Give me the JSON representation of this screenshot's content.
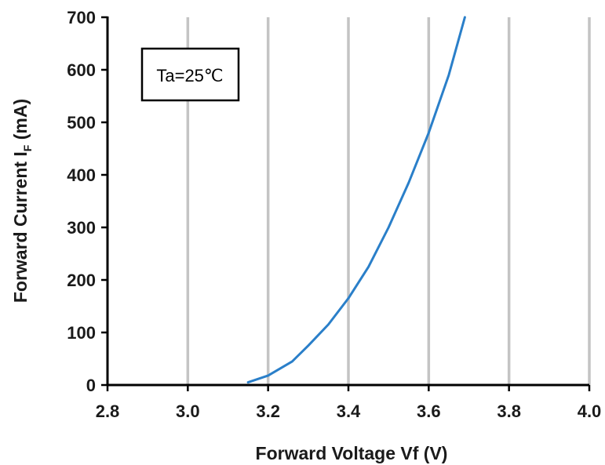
{
  "chart_data": {
    "type": "line",
    "title": "",
    "xlabel": "Forward Voltage Vf (V)",
    "ylabel_main": "Forward Current I",
    "ylabel_sub": "F",
    "ylabel_unit": " (mA)",
    "xlim": [
      2.8,
      4.0
    ],
    "ylim": [
      0,
      700
    ],
    "x_ticks": [
      "2.8",
      "3.0",
      "3.2",
      "3.4",
      "3.6",
      "3.8",
      "4.0"
    ],
    "y_ticks": [
      "0",
      "100",
      "200",
      "300",
      "400",
      "500",
      "600",
      "700"
    ],
    "grid": "vertical",
    "annotation": "Ta=25℃",
    "series": [
      {
        "color": "#2a7fc9",
        "x": [
          3.15,
          3.2,
          3.26,
          3.3,
          3.35,
          3.4,
          3.45,
          3.5,
          3.55,
          3.6,
          3.65,
          3.69
        ],
        "y": [
          5,
          18,
          45,
          75,
          115,
          165,
          225,
          300,
          385,
          480,
          590,
          700
        ]
      }
    ]
  }
}
